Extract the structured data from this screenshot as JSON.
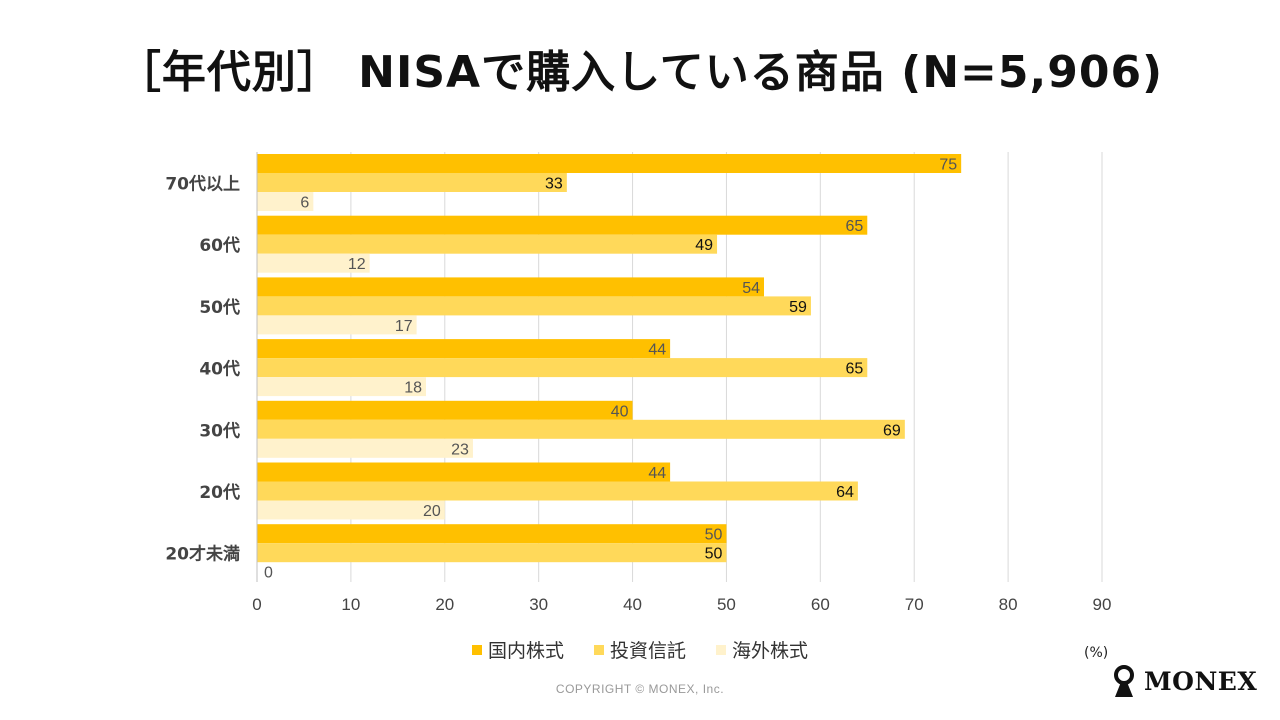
{
  "chart_data": {
    "type": "bar",
    "orientation": "horizontal",
    "title": "［年代別］ NISAで購入している商品 (N=5,906)",
    "categories": [
      "70代以上",
      "60代",
      "50代",
      "40代",
      "30代",
      "20代",
      "20才未満"
    ],
    "series": [
      {
        "name": "国内株式",
        "color": "#FFC000",
        "values": [
          75,
          65,
          54,
          44,
          40,
          44,
          50
        ]
      },
      {
        "name": "投資信託",
        "color": "#FFD95A",
        "values": [
          33,
          49,
          59,
          65,
          69,
          64,
          50
        ]
      },
      {
        "name": "海外株式",
        "color": "#FFF2CC",
        "values": [
          6,
          12,
          17,
          18,
          23,
          20,
          0
        ]
      }
    ],
    "xlim": [
      0,
      90
    ],
    "xticks": [
      "0",
      "10",
      "20",
      "30",
      "40",
      "50",
      "60",
      "70",
      "80",
      "90"
    ],
    "unit": "(%)",
    "grid": true,
    "legend_position": "bottom"
  },
  "footer": {
    "copyright": "COPYRIGHT © MONEX, Inc.",
    "brand": "MONEX"
  },
  "colors": {
    "label_dark": "#111111",
    "label_muted": "#555555",
    "grid": "#D9D9D9"
  }
}
